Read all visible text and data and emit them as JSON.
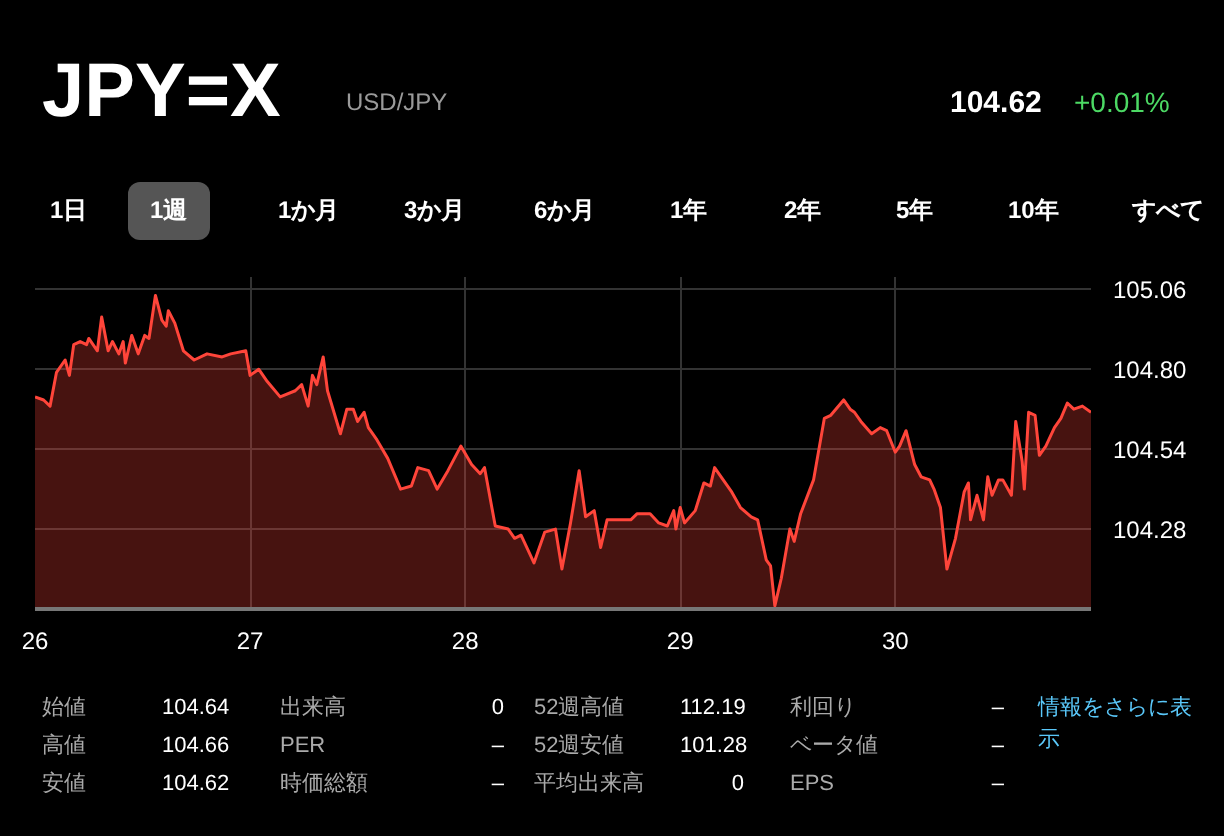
{
  "chart_data": {
    "type": "area",
    "title": "JPY=X",
    "subtitle": "USD/JPY",
    "annotations": [
      "104.62",
      "+0.01%",
      "1日",
      "1週",
      "1か月",
      "3か月",
      "6か月",
      "1年",
      "2年",
      "5年",
      "10年",
      "すべて",
      "始値",
      "104.64",
      "高値",
      "104.66",
      "安値",
      "104.62",
      "出来高",
      "0",
      "PER",
      "–",
      "時価総額",
      "–",
      "52週高値",
      "112.19",
      "52週安値",
      "101.28",
      "平均出来高",
      "0",
      "利回り",
      "–",
      "ベータ値",
      "–",
      "EPS",
      "–",
      "情報をさらに表示"
    ],
    "x": [
      26.0,
      26.04,
      26.07,
      26.1,
      26.14,
      26.16,
      26.18,
      26.21,
      26.24,
      26.25,
      26.29,
      26.31,
      26.34,
      26.36,
      26.39,
      26.41,
      26.42,
      26.45,
      26.48,
      26.51,
      26.53,
      26.56,
      26.59,
      26.61,
      26.62,
      26.65,
      26.69,
      26.74,
      26.8,
      26.87,
      26.91,
      26.98,
      27.0,
      27.04,
      27.08,
      27.14,
      27.21,
      27.24,
      27.27,
      27.29,
      27.31,
      27.34,
      27.36,
      27.42,
      27.45,
      27.48,
      27.5,
      27.53,
      27.55,
      27.56,
      27.59,
      27.64,
      27.7,
      27.75,
      27.78,
      27.83,
      27.87,
      27.92,
      27.98,
      28.03,
      28.07,
      28.09,
      28.14,
      28.2,
      28.23,
      28.26,
      28.28,
      28.32,
      28.37,
      28.42,
      28.45,
      28.49,
      28.53,
      28.56,
      28.6,
      28.63,
      28.66,
      28.69,
      28.77,
      28.8,
      28.86,
      28.9,
      28.94,
      28.97,
      28.98,
      29.0,
      29.02,
      29.07,
      29.11,
      29.14,
      29.16,
      29.19,
      29.24,
      29.28,
      29.33,
      29.36,
      29.4,
      29.42,
      29.44,
      29.47,
      29.51,
      29.53,
      29.56,
      29.62,
      29.67,
      29.7,
      29.76,
      29.79,
      29.81,
      29.84,
      29.89,
      29.93,
      29.96,
      30.0,
      30.02,
      30.05,
      30.09,
      30.12,
      30.16,
      30.18,
      30.21,
      30.24,
      30.28,
      30.32,
      30.34,
      30.35,
      30.38,
      30.41,
      30.43,
      30.45,
      30.48,
      30.5,
      30.54,
      30.56,
      30.59,
      30.6,
      30.62,
      30.65,
      30.67,
      30.7,
      30.74,
      30.77,
      30.8,
      30.83,
      30.87,
      30.91
    ],
    "series": [
      {
        "color": "#ff453a",
        "values": [
          104.71,
          104.7,
          104.68,
          104.79,
          104.83,
          104.78,
          104.88,
          104.89,
          104.88,
          104.9,
          104.86,
          104.97,
          104.86,
          104.89,
          104.85,
          104.89,
          104.82,
          104.91,
          104.85,
          104.91,
          104.9,
          105.04,
          104.96,
          104.94,
          104.99,
          104.95,
          104.86,
          104.83,
          104.85,
          104.84,
          104.85,
          104.86,
          104.78,
          104.8,
          104.76,
          104.71,
          104.73,
          104.75,
          104.68,
          104.78,
          104.75,
          104.84,
          104.73,
          104.59,
          104.67,
          104.67,
          104.63,
          104.66,
          104.61,
          104.6,
          104.57,
          104.51,
          104.41,
          104.42,
          104.48,
          104.47,
          104.41,
          104.47,
          104.55,
          104.49,
          104.46,
          104.48,
          104.29,
          104.28,
          104.25,
          104.26,
          104.23,
          104.17,
          104.27,
          104.28,
          104.15,
          104.3,
          104.47,
          104.32,
          104.34,
          104.22,
          104.31,
          104.31,
          104.31,
          104.33,
          104.33,
          104.3,
          104.29,
          104.34,
          104.28,
          104.35,
          104.3,
          104.34,
          104.43,
          104.42,
          104.48,
          104.45,
          104.4,
          104.35,
          104.32,
          104.31,
          104.18,
          104.16,
          104.03,
          104.12,
          104.28,
          104.24,
          104.33,
          104.44,
          104.64,
          104.65,
          104.7,
          104.67,
          104.66,
          104.63,
          104.59,
          104.61,
          104.6,
          104.53,
          104.55,
          104.6,
          104.49,
          104.45,
          104.44,
          104.41,
          104.35,
          104.15,
          104.25,
          104.4,
          104.43,
          104.31,
          104.39,
          104.31,
          104.45,
          104.39,
          104.44,
          104.44,
          104.39,
          104.63,
          104.5,
          104.41,
          104.66,
          104.65,
          104.52,
          104.55,
          104.61,
          104.64,
          104.69,
          104.67,
          104.68,
          104.66
        ]
      }
    ],
    "xlim": [
      26,
      30.91
    ],
    "ylim": [
      104.02,
      105.1
    ],
    "xticks": [
      26,
      27,
      28,
      29,
      30
    ],
    "yticks": [
      {
        "value": 104.28,
        "label": "104.28"
      },
      {
        "value": 104.54,
        "label": "104.54"
      },
      {
        "value": 104.8,
        "label": "104.80"
      },
      {
        "value": 105.06,
        "label": "105.06"
      }
    ],
    "grid": true
  }
}
